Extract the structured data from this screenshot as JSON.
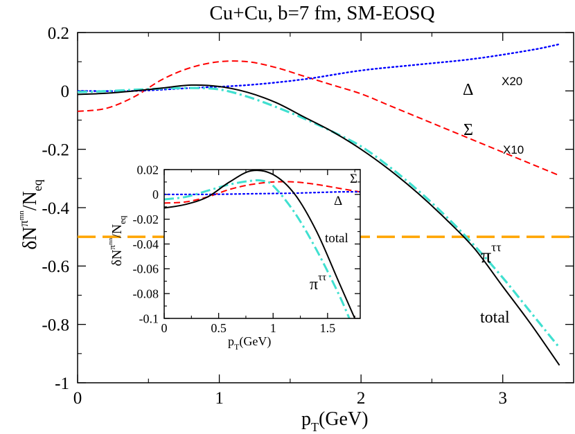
{
  "chart_data": [
    {
      "type": "line",
      "title": "Cu+Cu, b=7 fm, SM-EOSQ",
      "xlabel": {
        "main": "p",
        "sub": "T",
        "rest": "(GeV)"
      },
      "ylabel": {
        "delta": "δ",
        "N": "N",
        "pi": "π",
        "mn": "mn",
        "slash": "/N",
        "eq": "eq"
      },
      "xlim": [
        0,
        3.5
      ],
      "ylim": [
        -1,
        0.2
      ],
      "x_ticks": [
        0,
        1,
        2,
        3
      ],
      "x_tick_labels": [
        "0",
        "1",
        "2",
        "3"
      ],
      "y_ticks": [
        -1,
        -0.8,
        -0.6,
        -0.4,
        -0.2,
        0,
        0.2
      ],
      "y_tick_labels": [
        "-1",
        "-0.8",
        "-0.6",
        "-0.4",
        "-0.2",
        "0",
        "0.2"
      ],
      "annotations": {
        "delta": "Δ",
        "x20": "X20",
        "sigma": "Σ",
        "x10": "X10",
        "pi": "π",
        "pi_sup": "ττ",
        "total": "total"
      },
      "series": [
        {
          "name": "total",
          "color": "#000000",
          "style": "solid",
          "x": [
            0,
            0.2,
            0.4,
            0.6,
            0.8,
            1.0,
            1.2,
            1.4,
            1.6,
            1.8,
            2.0,
            2.2,
            2.4,
            2.6,
            2.8,
            3.0,
            3.2,
            3.4
          ],
          "y": [
            -0.012,
            -0.008,
            0.0,
            0.01,
            0.02,
            0.015,
            -0.005,
            -0.04,
            -0.09,
            -0.14,
            -0.2,
            -0.27,
            -0.35,
            -0.44,
            -0.54,
            -0.67,
            -0.8,
            -0.94
          ]
        },
        {
          "name": "π^ττ",
          "color": "#40e0d0",
          "style": "dash-dot",
          "x": [
            0,
            0.2,
            0.4,
            0.6,
            0.8,
            1.0,
            1.2,
            1.4,
            1.6,
            1.8,
            2.0,
            2.2,
            2.4,
            2.6,
            2.8,
            3.0,
            3.2,
            3.4
          ],
          "y": [
            -0.004,
            -0.001,
            0.004,
            0.008,
            0.01,
            0.005,
            -0.02,
            -0.055,
            -0.095,
            -0.14,
            -0.19,
            -0.26,
            -0.34,
            -0.43,
            -0.53,
            -0.64,
            -0.76,
            -0.88
          ]
        },
        {
          "name": "Σ X10",
          "color": "#ff0000",
          "style": "dashed",
          "x": [
            0,
            0.2,
            0.4,
            0.6,
            0.8,
            1.0,
            1.2,
            1.4,
            1.6,
            1.8,
            2.0,
            2.2,
            2.4,
            2.6,
            2.8,
            3.0,
            3.2,
            3.4
          ],
          "y": [
            -0.07,
            -0.06,
            -0.02,
            0.04,
            0.08,
            0.1,
            0.1,
            0.08,
            0.05,
            0.02,
            -0.01,
            -0.05,
            -0.09,
            -0.13,
            -0.17,
            -0.21,
            -0.25,
            -0.29
          ]
        },
        {
          "name": "Δ X20",
          "color": "#0000ff",
          "style": "dotted",
          "x": [
            0,
            0.4,
            0.8,
            1.2,
            1.6,
            2.0,
            2.4,
            2.8,
            3.2,
            3.4
          ],
          "y": [
            0.0,
            0.0,
            0.01,
            0.02,
            0.04,
            0.07,
            0.09,
            0.11,
            0.14,
            0.16
          ]
        },
        {
          "name": "orange reference",
          "color": "#ffa500",
          "style": "long-dash",
          "x": [
            0,
            3.5
          ],
          "y": [
            -0.5,
            -0.5
          ]
        }
      ]
    },
    {
      "type": "line",
      "title": "inset",
      "xlabel": {
        "main": "p",
        "sub": "T",
        "rest": "(GeV)"
      },
      "ylabel": {
        "delta": "δ",
        "N": "N",
        "pi": "π",
        "mn": "mn",
        "slash": "/N",
        "eq": "eq"
      },
      "xlim": [
        0,
        1.8
      ],
      "ylim": [
        -0.1,
        0.02
      ],
      "x_ticks": [
        0,
        0.5,
        1,
        1.5
      ],
      "x_tick_labels": [
        "0",
        "0.5",
        "1",
        "1.5"
      ],
      "y_ticks": [
        -0.1,
        -0.08,
        -0.06,
        -0.04,
        -0.02,
        0,
        0.02
      ],
      "y_tick_labels": [
        "-0.1",
        "-0.08",
        "-0.06",
        "-0.04",
        "-0.02",
        "0",
        "0.02"
      ],
      "annotations": {
        "sigma": "Σ",
        "delta": "Δ",
        "total": "total",
        "pi": "π",
        "pi_sup": "ττ"
      },
      "series": [
        {
          "name": "total",
          "color": "#000000",
          "style": "solid",
          "x": [
            0,
            0.2,
            0.4,
            0.6,
            0.8,
            1.0,
            1.2,
            1.4,
            1.6,
            1.75
          ],
          "y": [
            -0.011,
            -0.008,
            -0.002,
            0.01,
            0.019,
            0.016,
            0.0,
            -0.03,
            -0.07,
            -0.1
          ]
        },
        {
          "name": "π^ττ",
          "color": "#40e0d0",
          "style": "dash-dot",
          "x": [
            0,
            0.2,
            0.4,
            0.6,
            0.8,
            0.9,
            1.0,
            1.2,
            1.4,
            1.6,
            1.7
          ],
          "y": [
            -0.004,
            -0.002,
            0.003,
            0.008,
            0.011,
            0.011,
            0.007,
            -0.015,
            -0.045,
            -0.08,
            -0.1
          ]
        },
        {
          "name": "Σ",
          "color": "#ff0000",
          "style": "dashed",
          "x": [
            0,
            0.2,
            0.4,
            0.6,
            0.8,
            1.0,
            1.2,
            1.4,
            1.6,
            1.8
          ],
          "y": [
            -0.007,
            -0.006,
            -0.002,
            0.004,
            0.008,
            0.01,
            0.01,
            0.008,
            0.005,
            0.002
          ]
        },
        {
          "name": "Δ",
          "color": "#0000ff",
          "style": "dotted",
          "x": [
            0,
            0.4,
            0.8,
            1.2,
            1.6,
            1.8
          ],
          "y": [
            0.0,
            0.0,
            0.0005,
            0.001,
            0.002,
            0.002
          ]
        }
      ]
    }
  ]
}
